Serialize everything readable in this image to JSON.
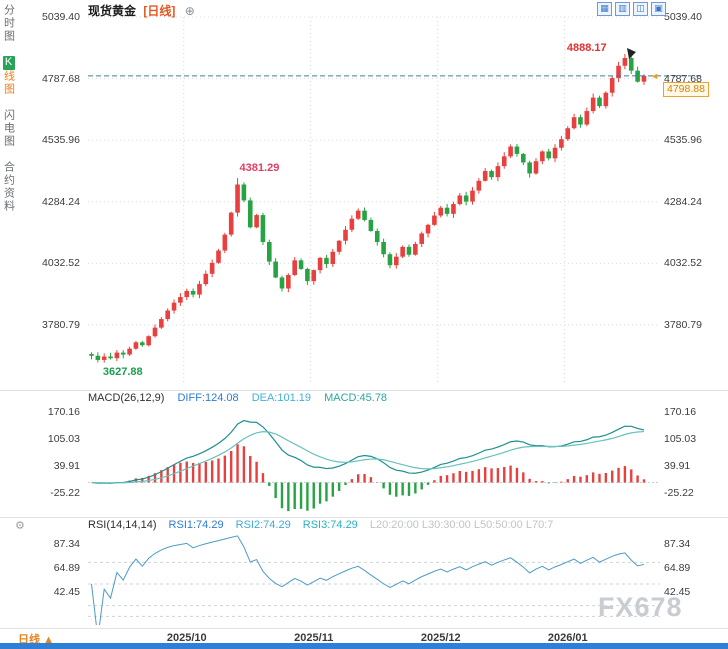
{
  "header": {
    "symbol": "现货黄金",
    "period_tag": "[日线]",
    "add_icon": "⊕"
  },
  "sidebar": {
    "items": [
      {
        "label": "分时图"
      },
      {
        "active_prefix": "K",
        "active_rest": "线图"
      },
      {
        "label": "闪电图"
      },
      {
        "label": "合约资料"
      }
    ]
  },
  "toolbar": {
    "icons": [
      {
        "name": "multi-grid-layout-icon",
        "glyph": "▦"
      },
      {
        "name": "split-grid-layout-icon",
        "glyph": "▥"
      },
      {
        "name": "line-chart-layout-icon",
        "glyph": "◫"
      },
      {
        "name": "candle-chart-layout-icon",
        "glyph": "▣"
      }
    ]
  },
  "icons": {
    "price_pointer": "◄",
    "rsi_settings": "⚙"
  },
  "bottom": {
    "period": "日线",
    "arrow": "▲"
  },
  "watermark": "FX678",
  "chart_data": {
    "type": "candlestick",
    "title": "现货黄金 日线",
    "x_labels": [
      "2025/10",
      "2025/11",
      "2025/12",
      "2026/01"
    ],
    "month_start_indices": [
      15,
      35,
      55,
      75
    ],
    "price_axis_ticks": [
      5039.4,
      4787.68,
      4535.96,
      4284.24,
      4032.52,
      3780.79
    ],
    "price_axis_range": {
      "top": 5039.4,
      "bottom": 3535.6
    },
    "colors": {
      "up": "#e8403f",
      "down": "#27a344",
      "grid": "#dcdcdc",
      "diff_line": "#1f8f8f",
      "dea_line": "#66c2bd",
      "rsi_line": "#4a9cc4",
      "last_price_line": "#3e7d9a",
      "badge": "#e8a13d"
    },
    "candles": {
      "first_open": 3662,
      "closes": [
        3655,
        3638,
        3652,
        3645,
        3668,
        3660,
        3684,
        3710,
        3698,
        3735,
        3770,
        3805,
        3840,
        3872,
        3895,
        3920,
        3905,
        3948,
        3990,
        4035,
        4085,
        4150,
        4240,
        4355,
        4290,
        4180,
        4230,
        4120,
        4040,
        3975,
        3930,
        3985,
        4045,
        4010,
        3960,
        4005,
        4055,
        4030,
        4080,
        4125,
        4170,
        4215,
        4248,
        4210,
        4165,
        4120,
        4070,
        4025,
        4060,
        4100,
        4068,
        4112,
        4155,
        4190,
        4228,
        4260,
        4235,
        4275,
        4310,
        4285,
        4330,
        4370,
        4410,
        4385,
        4430,
        4470,
        4510,
        4480,
        4445,
        4400,
        4450,
        4490,
        4462,
        4505,
        4540,
        4585,
        4630,
        4600,
        4655,
        4710,
        4675,
        4730,
        4790,
        4840,
        4872,
        4820,
        4775,
        4798.88
      ],
      "extremes": [
        {
          "index": 1,
          "type": "low",
          "value": 3627.88
        },
        {
          "index": 23,
          "type": "high",
          "value": 4381.29
        },
        {
          "index": 84,
          "type": "high",
          "value": 4888.17
        }
      ]
    },
    "annotations": [
      {
        "text": "3627.88",
        "at_index": 1,
        "value": 3627.88,
        "position": "below",
        "color": "#1a9e50"
      },
      {
        "text": "4381.29",
        "at_index": 23,
        "value": 4381.29,
        "position": "above",
        "color": "#e23d60"
      },
      {
        "text": "4888.17",
        "at_index": 84,
        "value": 4888.17,
        "position": "above-left",
        "color": "#e62e2e"
      }
    ],
    "last_price": {
      "value": 4798.88,
      "label": "4798.88",
      "axis_label": "4787.68"
    },
    "macd": {
      "name": "MACD(26,12,9)",
      "diff": "DIFF:124.08",
      "dea": "DEA:101.19",
      "macd": "MACD:45.78",
      "params": [
        26,
        12,
        9
      ],
      "diff_value": 124.08,
      "dea_value": 101.19,
      "macd_value": 45.78,
      "ticks": [
        170.16,
        105.03,
        39.91,
        -25.22
      ]
    },
    "rsi": {
      "name": "RSI(14,14,14)",
      "rsi1": "RSI1:74.29",
      "rsi2": "RSI2:74.29",
      "rsi3": "RSI3:74.29",
      "rsi1_value": 74.29,
      "rsi2_value": 74.29,
      "rsi3_value": 74.29,
      "levels": "L20:20:00   L30:30:00   L50:50:00   L70:7",
      "ticks": [
        87.34,
        64.89,
        42.45
      ],
      "ref_levels": [
        20,
        30,
        50,
        70
      ]
    }
  }
}
